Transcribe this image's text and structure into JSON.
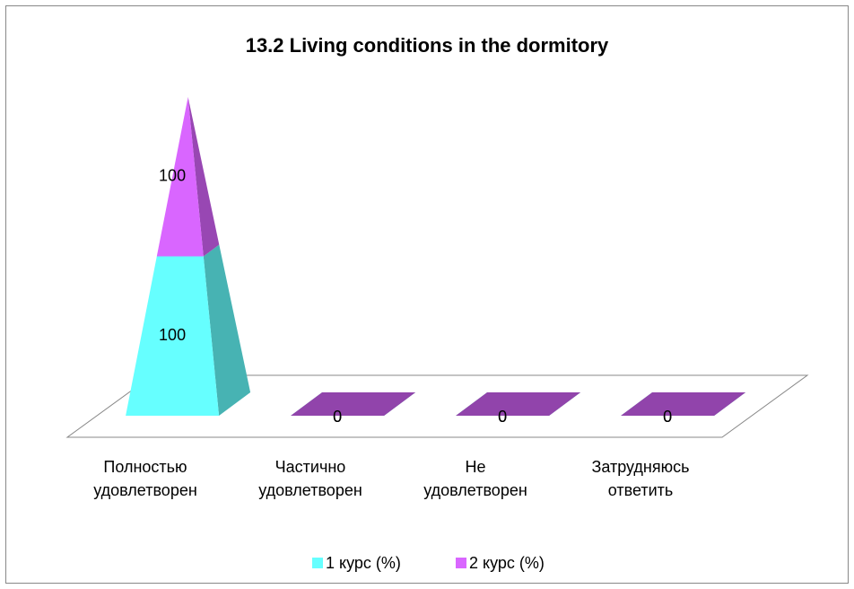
{
  "chart_data": {
    "type": "pyramid",
    "title": "13.2 Living conditions in the dormitory",
    "categories": [
      "Полностью удовлетворен",
      "Частично удовлетворен",
      "Не удовлетворен",
      "Затрудняюсь ответить"
    ],
    "stacked": true,
    "series": [
      {
        "name": "1 курс (%)",
        "color": "#66ffff",
        "values": [
          100,
          0,
          0,
          0
        ]
      },
      {
        "name": "2 курс (%)",
        "color": "#d966ff",
        "values": [
          100,
          0,
          0,
          0
        ]
      }
    ],
    "legend": "bottom"
  }
}
